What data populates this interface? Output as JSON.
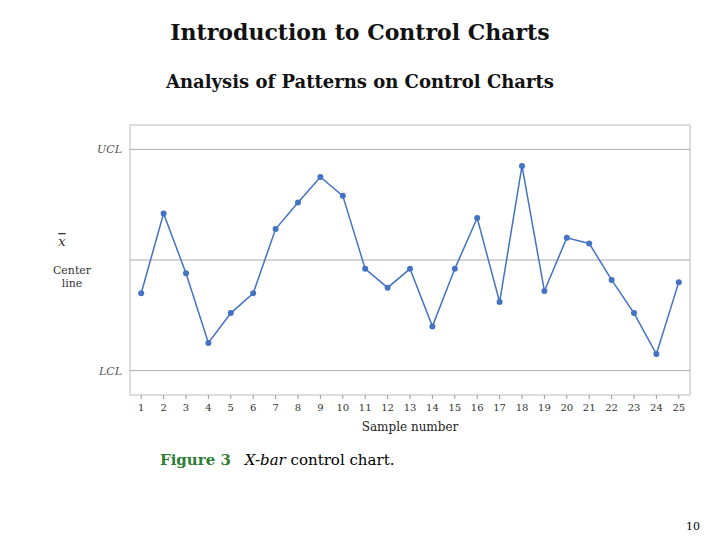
{
  "chart_data": {
    "type": "line",
    "title": "Introduction to Control Charts",
    "subtitle": "Analysis of Patterns on Control Charts",
    "xlabel": "Sample number",
    "x": [
      1,
      2,
      3,
      4,
      5,
      6,
      7,
      8,
      9,
      10,
      11,
      12,
      13,
      14,
      15,
      16,
      17,
      18,
      19,
      20,
      21,
      22,
      23,
      24,
      25
    ],
    "values": [
      -0.3,
      0.42,
      -0.12,
      -0.75,
      -0.48,
      -0.3,
      0.28,
      0.52,
      0.75,
      0.58,
      -0.08,
      -0.25,
      -0.08,
      -0.6,
      -0.08,
      0.38,
      -0.38,
      0.85,
      -0.28,
      0.2,
      0.15,
      -0.18,
      -0.48,
      -0.85,
      -0.2
    ],
    "color": "#4472C4",
    "marker": "circle",
    "xlim": [
      0.5,
      25.5
    ],
    "xticks": [
      1,
      2,
      3,
      4,
      5,
      6,
      7,
      8,
      9,
      10,
      11,
      12,
      13,
      14,
      15,
      16,
      17,
      18,
      19,
      20,
      21,
      22,
      23,
      24,
      25
    ],
    "ylim": [
      -1.22,
      1.22
    ],
    "tick_labels": "x",
    "grid": false,
    "reference_lines": [
      {
        "value": 1.0,
        "label": "UCL"
      },
      {
        "value": 0.0,
        "symbol": "x",
        "label": "Center\nline"
      },
      {
        "value": -1.0,
        "label": "LCL"
      }
    ],
    "caption": {
      "label": "Figure 3",
      "label_color": "#2e7d32",
      "text": "X-bar",
      "rest": " control chart."
    },
    "page_number": "10"
  }
}
